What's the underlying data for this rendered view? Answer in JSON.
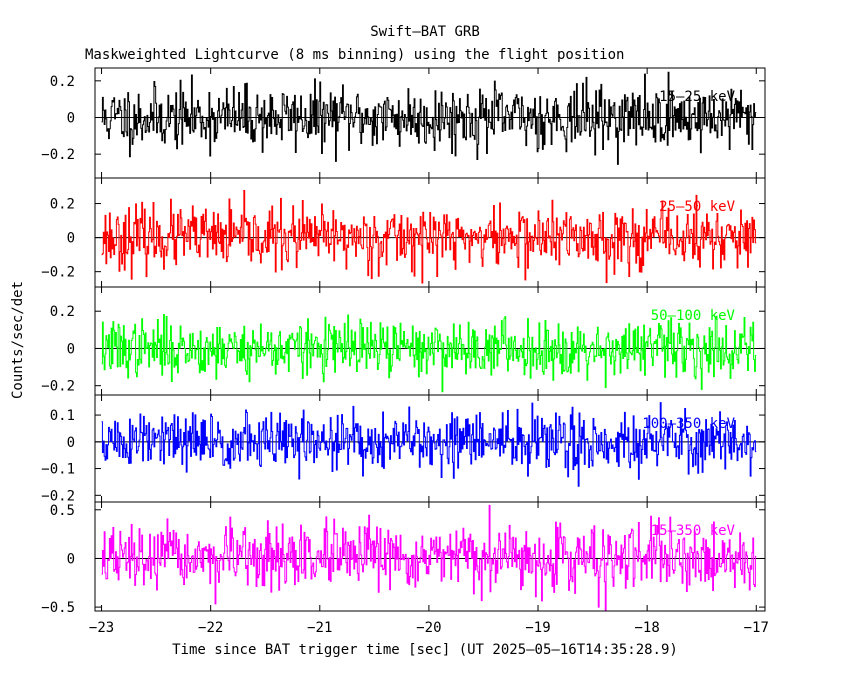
{
  "chart_data": {
    "type": "line",
    "title": "Swift–BAT GRB",
    "subtitle": "Maskweighted Lightcurve (8 ms binning) using the flight position",
    "xlabel": "Time since BAT trigger time [sec] (UT 2025–05–16T14:35:28.9)",
    "ylabel": "Counts/sec/det",
    "xlim": [
      -23.06,
      -16.92
    ],
    "x_ticks": [
      -23,
      -22,
      -21,
      -20,
      -19,
      -18,
      -17
    ],
    "x_tick_labels": [
      "−23",
      "−22",
      "−21",
      "−20",
      "−19",
      "−18",
      "−17"
    ],
    "bin_size_sec": 0.008,
    "x_start": -23.0,
    "x_end": -17.0,
    "panels": [
      {
        "band": "15–25 keV",
        "color": "#000000",
        "ylim": [
          -0.33,
          0.27
        ],
        "y_ticks": [
          -0.2,
          0,
          0.2
        ],
        "y_tick_labels": [
          "−0.2",
          "0",
          "0.2"
        ],
        "noise_sigma": 0.085,
        "seed": 11
      },
      {
        "band": "25–50 keV",
        "color": "#ff0000",
        "ylim": [
          -0.29,
          0.35
        ],
        "y_ticks": [
          -0.2,
          0,
          0.2
        ],
        "y_tick_labels": [
          "−0.2",
          "0",
          "0.2"
        ],
        "noise_sigma": 0.09,
        "seed": 23
      },
      {
        "band": "50–100 keV",
        "color": "#00ff00",
        "ylim": [
          -0.25,
          0.33
        ],
        "y_ticks": [
          -0.2,
          0,
          0.2
        ],
        "y_tick_labels": [
          "−0.2",
          "0",
          "0.2"
        ],
        "noise_sigma": 0.075,
        "seed": 37
      },
      {
        "band": "100–350 keV",
        "color": "#0000ff",
        "ylim": [
          -0.225,
          0.175
        ],
        "y_ticks": [
          -0.2,
          -0.1,
          0,
          0.1
        ],
        "y_tick_labels": [
          "−0.2",
          "−0.1",
          "0",
          "0.1"
        ],
        "noise_sigma": 0.055,
        "seed": 51
      },
      {
        "band": "15–350 keV",
        "color": "#ff00ff",
        "ylim": [
          -0.54,
          0.58
        ],
        "y_ticks": [
          -0.5,
          0,
          0.5
        ],
        "y_tick_labels": [
          "−0.5",
          "0",
          "0.5"
        ],
        "noise_sigma": 0.16,
        "seed": 67
      }
    ]
  }
}
